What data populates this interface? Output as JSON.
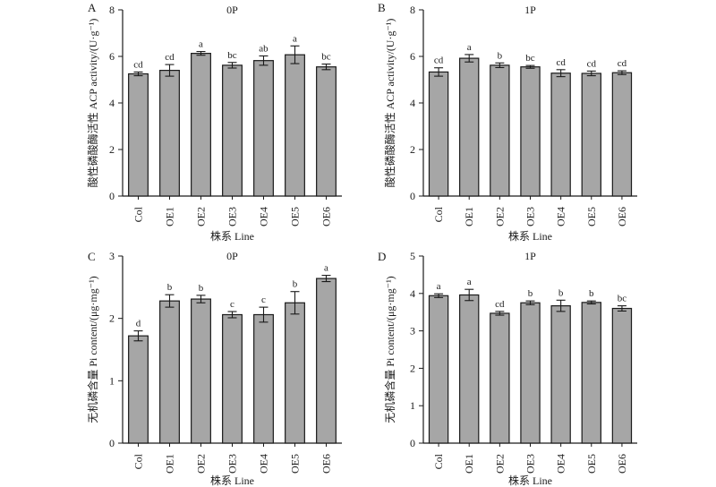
{
  "chart_data": [
    {
      "type": "bar",
      "panel_letter": "A",
      "title": "0P",
      "xlabel": "株系 Line",
      "ylabel": "酸性磷酸酶活性 ACP activity/(U·g⁻¹)",
      "ylim": [
        0,
        8
      ],
      "yticks": [
        0,
        2,
        4,
        6,
        8
      ],
      "categories": [
        "Col",
        "OE1",
        "OE2",
        "OE3",
        "OE4",
        "OE5",
        "OE6"
      ],
      "values": [
        5.25,
        5.4,
        6.13,
        5.62,
        5.82,
        6.07,
        5.55
      ],
      "errors": [
        0.08,
        0.25,
        0.08,
        0.12,
        0.2,
        0.38,
        0.12
      ],
      "significance": [
        "cd",
        "cd",
        "a",
        "bc",
        "ab",
        "a",
        "bc"
      ]
    },
    {
      "type": "bar",
      "panel_letter": "B",
      "title": "1P",
      "xlabel": "株系 Line",
      "ylabel": "酸性磷酸酶活性 ACP activity/(U·g⁻¹)",
      "ylim": [
        0,
        8
      ],
      "yticks": [
        0,
        2,
        4,
        6,
        8
      ],
      "categories": [
        "Col",
        "OE1",
        "OE2",
        "OE3",
        "OE4",
        "OE5",
        "OE6"
      ],
      "values": [
        5.33,
        5.92,
        5.62,
        5.55,
        5.28,
        5.27,
        5.3
      ],
      "errors": [
        0.18,
        0.16,
        0.1,
        0.06,
        0.15,
        0.1,
        0.08
      ],
      "significance": [
        "cd",
        "a",
        "b",
        "bc",
        "cd",
        "cd",
        "cd"
      ]
    },
    {
      "type": "bar",
      "panel_letter": "C",
      "title": "0P",
      "xlabel": "株系 Line",
      "ylabel": "无机磷含量 Pi content/(μg·mg⁻¹)",
      "ylim": [
        0,
        3
      ],
      "yticks": [
        0,
        1,
        2,
        3
      ],
      "categories": [
        "Col",
        "OE1",
        "OE2",
        "OE3",
        "OE4",
        "OE5",
        "OE6"
      ],
      "values": [
        1.72,
        2.28,
        2.31,
        2.06,
        2.06,
        2.25,
        2.64
      ],
      "errors": [
        0.08,
        0.1,
        0.06,
        0.05,
        0.12,
        0.18,
        0.05
      ],
      "significance": [
        "d",
        "b",
        "b",
        "c",
        "c",
        "b",
        "a"
      ]
    },
    {
      "type": "bar",
      "panel_letter": "D",
      "title": "1P",
      "xlabel": "株系 Line",
      "ylabel": "无机磷含量 Pi content/(μg·mg⁻¹)",
      "ylim": [
        0,
        5
      ],
      "yticks": [
        0,
        1,
        2,
        3,
        4,
        5
      ],
      "categories": [
        "Col",
        "OE1",
        "OE2",
        "OE3",
        "OE4",
        "OE5",
        "OE6"
      ],
      "values": [
        3.94,
        3.96,
        3.47,
        3.75,
        3.67,
        3.76,
        3.6
      ],
      "errors": [
        0.05,
        0.15,
        0.05,
        0.05,
        0.15,
        0.04,
        0.07
      ],
      "significance": [
        "a",
        "a",
        "cd",
        "b",
        "b",
        "b",
        "bc"
      ]
    }
  ]
}
